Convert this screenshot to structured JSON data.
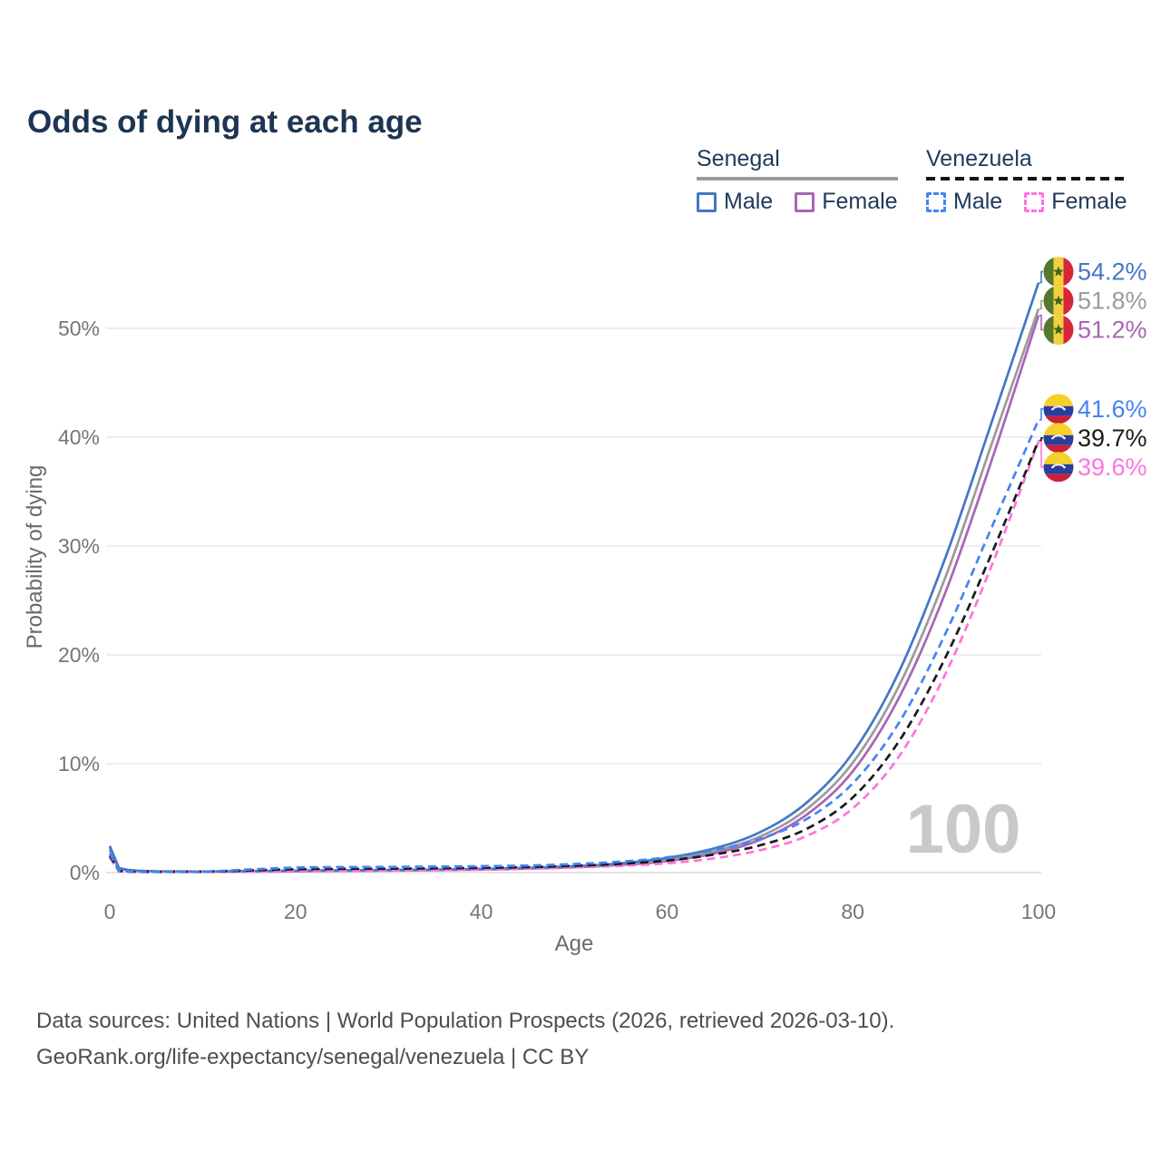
{
  "page": {
    "title": "Odds of dying at each age"
  },
  "legend": {
    "groups": [
      {
        "name": "Senegal",
        "line_style": "solid",
        "underline_color": "#9b9b9b",
        "items": [
          {
            "label": "Male",
            "color": "#4477C4"
          },
          {
            "label": "Female",
            "color": "#A965B5"
          }
        ]
      },
      {
        "name": "Venezuela",
        "line_style": "dashed",
        "underline_color": "#141414",
        "items": [
          {
            "label": "Male",
            "color": "#4285F4"
          },
          {
            "label": "Female",
            "color": "#FF73DE"
          }
        ]
      }
    ]
  },
  "footer": {
    "line1": "Data sources: United Nations | World Population Prospects (2026, retrieved 2026-03-10).",
    "line2": "GeoRank.org/life-expectancy/senegal/venezuela | CC BY"
  },
  "chart_data": {
    "type": "line",
    "title": "Odds of dying at each age",
    "xlabel": "Age",
    "ylabel": "Probability of dying",
    "xlim": [
      0,
      100
    ],
    "ylim_percent": [
      0,
      56
    ],
    "x_ticks": [
      0,
      20,
      40,
      60,
      80,
      100
    ],
    "y_ticks": [
      {
        "value": 0,
        "label": "0%"
      },
      {
        "value": 10,
        "label": "10%"
      },
      {
        "value": 20,
        "label": "20%"
      },
      {
        "value": 30,
        "label": "30%"
      },
      {
        "value": 40,
        "label": "40%"
      },
      {
        "value": 50,
        "label": "50%"
      }
    ],
    "grid": "horizontal",
    "legend_position": "top-right",
    "watermark_age_counter": "100",
    "series": [
      {
        "name": "Senegal Male",
        "country": "Senegal",
        "sex": "Male",
        "flag": "senegal",
        "color": "#4477C4",
        "dashed": false,
        "end_label": "54.2%",
        "final_value_percent": 54.2,
        "points": [
          [
            0,
            2.45
          ],
          [
            1,
            0.4
          ],
          [
            2,
            0.24
          ],
          [
            3,
            0.17
          ],
          [
            5,
            0.12
          ],
          [
            10,
            0.1
          ],
          [
            15,
            0.13
          ],
          [
            20,
            0.18
          ],
          [
            25,
            0.21
          ],
          [
            30,
            0.24
          ],
          [
            35,
            0.28
          ],
          [
            40,
            0.33
          ],
          [
            45,
            0.43
          ],
          [
            50,
            0.58
          ],
          [
            55,
            0.85
          ],
          [
            60,
            1.35
          ],
          [
            65,
            2.2
          ],
          [
            70,
            3.7
          ],
          [
            75,
            6.4
          ],
          [
            80,
            11.0
          ],
          [
            85,
            18.5
          ],
          [
            90,
            29.0
          ],
          [
            95,
            41.5
          ],
          [
            100,
            54.2
          ]
        ]
      },
      {
        "name": "Senegal Both sexes",
        "country": "Senegal",
        "sex": "Both sexes",
        "flag": "senegal",
        "color": "#9B9B9B",
        "dashed": false,
        "end_label": "51.8%",
        "final_value_percent": 51.8,
        "points": [
          [
            0,
            2.25
          ],
          [
            1,
            0.37
          ],
          [
            2,
            0.22
          ],
          [
            3,
            0.16
          ],
          [
            5,
            0.11
          ],
          [
            10,
            0.09
          ],
          [
            15,
            0.11
          ],
          [
            20,
            0.15
          ],
          [
            25,
            0.18
          ],
          [
            30,
            0.21
          ],
          [
            35,
            0.25
          ],
          [
            40,
            0.3
          ],
          [
            45,
            0.39
          ],
          [
            50,
            0.53
          ],
          [
            55,
            0.77
          ],
          [
            60,
            1.2
          ],
          [
            65,
            1.95
          ],
          [
            70,
            3.3
          ],
          [
            75,
            5.8
          ],
          [
            80,
            10.1
          ],
          [
            85,
            17.2
          ],
          [
            90,
            27.2
          ],
          [
            95,
            39.5
          ],
          [
            100,
            51.8
          ]
        ]
      },
      {
        "name": "Senegal Female",
        "country": "Senegal",
        "sex": "Female",
        "flag": "senegal",
        "color": "#A965B5",
        "dashed": false,
        "end_label": "51.2%",
        "final_value_percent": 51.2,
        "points": [
          [
            0,
            2.05
          ],
          [
            1,
            0.34
          ],
          [
            2,
            0.2
          ],
          [
            3,
            0.15
          ],
          [
            5,
            0.1
          ],
          [
            10,
            0.08
          ],
          [
            15,
            0.09
          ],
          [
            20,
            0.12
          ],
          [
            25,
            0.15
          ],
          [
            30,
            0.18
          ],
          [
            35,
            0.22
          ],
          [
            40,
            0.27
          ],
          [
            45,
            0.35
          ],
          [
            50,
            0.48
          ],
          [
            55,
            0.7
          ],
          [
            60,
            1.05
          ],
          [
            65,
            1.75
          ],
          [
            70,
            3.0
          ],
          [
            75,
            5.3
          ],
          [
            80,
            9.3
          ],
          [
            85,
            16.1
          ],
          [
            90,
            25.8
          ],
          [
            95,
            38.0
          ],
          [
            100,
            51.2
          ]
        ]
      },
      {
        "name": "Venezuela Male",
        "country": "Venezuela",
        "sex": "Male",
        "flag": "venezuela",
        "color": "#4285F4",
        "dashed": true,
        "end_label": "41.6%",
        "final_value_percent": 41.6,
        "points": [
          [
            0,
            1.75
          ],
          [
            1,
            0.16
          ],
          [
            2,
            0.1
          ],
          [
            3,
            0.09
          ],
          [
            5,
            0.08
          ],
          [
            10,
            0.09
          ],
          [
            15,
            0.28
          ],
          [
            20,
            0.46
          ],
          [
            25,
            0.5
          ],
          [
            30,
            0.52
          ],
          [
            35,
            0.55
          ],
          [
            40,
            0.58
          ],
          [
            45,
            0.65
          ],
          [
            50,
            0.78
          ],
          [
            55,
            1.0
          ],
          [
            60,
            1.4
          ],
          [
            65,
            2.05
          ],
          [
            70,
            3.1
          ],
          [
            75,
            4.9
          ],
          [
            80,
            8.2
          ],
          [
            85,
            13.8
          ],
          [
            90,
            22.0
          ],
          [
            95,
            31.8
          ],
          [
            100,
            41.6
          ]
        ]
      },
      {
        "name": "Venezuela Both sexes",
        "country": "Venezuela",
        "sex": "Both sexes",
        "flag": "venezuela",
        "color": "#1A1A1A",
        "dashed": true,
        "end_label": "39.7%",
        "final_value_percent": 39.7,
        "points": [
          [
            0,
            1.55
          ],
          [
            1,
            0.14
          ],
          [
            2,
            0.09
          ],
          [
            3,
            0.08
          ],
          [
            5,
            0.07
          ],
          [
            10,
            0.08
          ],
          [
            15,
            0.19
          ],
          [
            20,
            0.31
          ],
          [
            25,
            0.34
          ],
          [
            30,
            0.36
          ],
          [
            35,
            0.39
          ],
          [
            40,
            0.43
          ],
          [
            45,
            0.5
          ],
          [
            50,
            0.62
          ],
          [
            55,
            0.8
          ],
          [
            60,
            1.1
          ],
          [
            65,
            1.65
          ],
          [
            70,
            2.5
          ],
          [
            75,
            4.0
          ],
          [
            80,
            6.9
          ],
          [
            85,
            12.1
          ],
          [
            90,
            19.8
          ],
          [
            95,
            29.4
          ],
          [
            100,
            39.7
          ]
        ]
      },
      {
        "name": "Venezuela Female",
        "country": "Venezuela",
        "sex": "Female",
        "flag": "venezuela",
        "color": "#FF73DE",
        "dashed": true,
        "end_label": "39.6%",
        "final_value_percent": 39.6,
        "points": [
          [
            0,
            1.4
          ],
          [
            1,
            0.12
          ],
          [
            2,
            0.08
          ],
          [
            3,
            0.07
          ],
          [
            5,
            0.06
          ],
          [
            10,
            0.06
          ],
          [
            15,
            0.1
          ],
          [
            20,
            0.15
          ],
          [
            25,
            0.17
          ],
          [
            30,
            0.2
          ],
          [
            35,
            0.23
          ],
          [
            40,
            0.28
          ],
          [
            45,
            0.36
          ],
          [
            50,
            0.47
          ],
          [
            55,
            0.62
          ],
          [
            60,
            0.85
          ],
          [
            65,
            1.3
          ],
          [
            70,
            2.05
          ],
          [
            75,
            3.35
          ],
          [
            80,
            5.9
          ],
          [
            85,
            10.7
          ],
          [
            90,
            18.3
          ],
          [
            95,
            28.3
          ],
          [
            100,
            39.6
          ]
        ]
      }
    ],
    "flag_colors": {
      "senegal": {
        "green": "#55782c",
        "yellow": "#f2d13e",
        "red": "#d9253b",
        "star": "#3e611f"
      },
      "venezuela": {
        "yellow": "#f7cf2c",
        "blue": "#2b3d9c",
        "red": "#cc2136",
        "stars": "#ffffff"
      }
    }
  }
}
